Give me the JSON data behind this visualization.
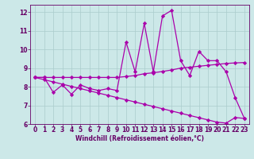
{
  "x": [
    0,
    1,
    2,
    3,
    4,
    5,
    6,
    7,
    8,
    9,
    10,
    11,
    12,
    13,
    14,
    15,
    16,
    17,
    18,
    19,
    20,
    21,
    22,
    23
  ],
  "y_main": [
    8.5,
    8.5,
    7.7,
    8.1,
    7.6,
    8.1,
    7.9,
    7.8,
    7.9,
    7.8,
    10.4,
    8.8,
    11.4,
    8.8,
    11.8,
    12.1,
    9.4,
    8.6,
    9.9,
    9.4,
    9.4,
    8.8,
    7.4,
    6.3
  ],
  "y_upper": [
    8.5,
    8.5,
    8.5,
    8.5,
    8.5,
    8.5,
    8.5,
    8.5,
    8.5,
    8.5,
    8.55,
    8.6,
    8.7,
    8.75,
    8.82,
    8.9,
    9.0,
    9.05,
    9.1,
    9.15,
    9.2,
    9.25,
    9.28,
    9.3
  ],
  "y_lower": [
    8.5,
    8.38,
    8.26,
    8.14,
    8.02,
    7.9,
    7.78,
    7.66,
    7.54,
    7.42,
    7.3,
    7.18,
    7.06,
    6.94,
    6.82,
    6.7,
    6.58,
    6.46,
    6.34,
    6.22,
    6.1,
    6.05,
    6.35,
    6.3
  ],
  "line_color": "#aa00aa",
  "bg_color": "#cce8e8",
  "grid_color": "#aacccc",
  "text_color": "#660066",
  "xlim": [
    -0.5,
    23.5
  ],
  "ylim": [
    6,
    12.4
  ],
  "yticks": [
    6,
    7,
    8,
    9,
    10,
    11,
    12
  ],
  "xticks": [
    0,
    1,
    2,
    3,
    4,
    5,
    6,
    7,
    8,
    9,
    10,
    11,
    12,
    13,
    14,
    15,
    16,
    17,
    18,
    19,
    20,
    21,
    22,
    23
  ],
  "xlabel": "Windchill (Refroidissement éolien,°C)",
  "marker": "D",
  "markersize": 2.2,
  "linewidth": 0.9
}
